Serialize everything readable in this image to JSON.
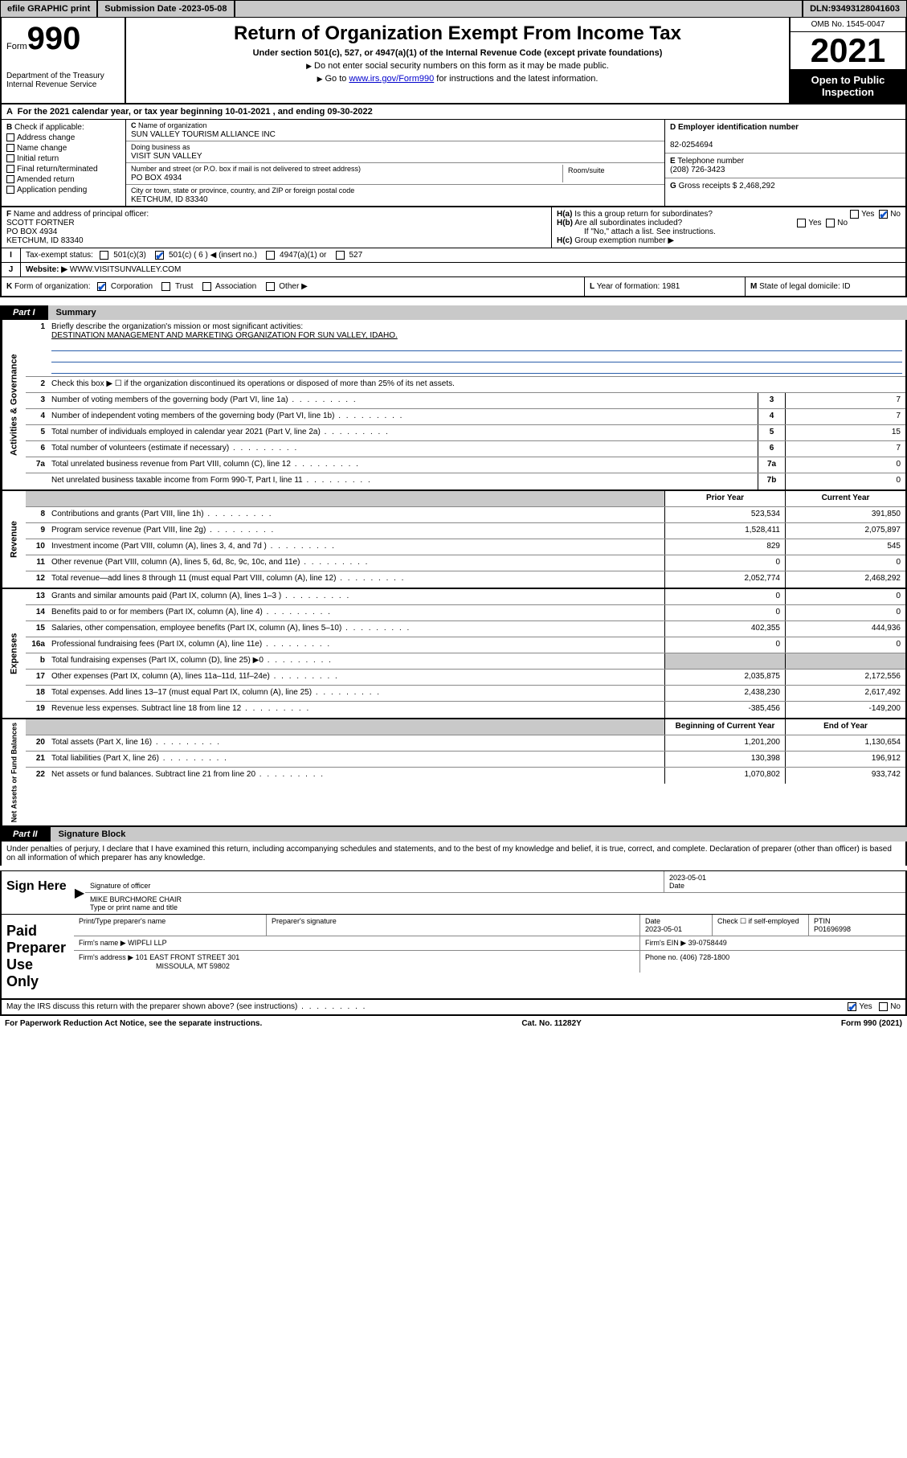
{
  "topbar": {
    "efile": "efile GRAPHIC print",
    "sub_label": "Submission Date - ",
    "sub_date": "2023-05-08",
    "dln_label": "DLN: ",
    "dln": "93493128041603"
  },
  "header": {
    "form_word": "Form",
    "form_num": "990",
    "dept": "Department of the Treasury\nInternal Revenue Service",
    "title": "Return of Organization Exempt From Income Tax",
    "subtitle": "Under section 501(c), 527, or 4947(a)(1) of the Internal Revenue Code (except private foundations)",
    "note1": "Do not enter social security numbers on this form as it may be made public.",
    "note2_pre": "Go to ",
    "note2_link": "www.irs.gov/Form990",
    "note2_post": " for instructions and the latest information.",
    "omb": "OMB No. 1545-0047",
    "year": "2021",
    "open": "Open to Public Inspection"
  },
  "lineA": "For the 2021 calendar year, or tax year beginning 10-01-2021   , and ending 09-30-2022",
  "B": {
    "label": "Check if applicable:",
    "items": [
      "Address change",
      "Name change",
      "Initial return",
      "Final return/terminated",
      "Amended return",
      "Application pending"
    ]
  },
  "C": {
    "name_lbl": "Name of organization",
    "name": "SUN VALLEY TOURISM ALLIANCE INC",
    "dba_lbl": "Doing business as",
    "dba": "VISIT SUN VALLEY",
    "street_lbl": "Number and street (or P.O. box if mail is not delivered to street address)",
    "room_lbl": "Room/suite",
    "street": "PO BOX 4934",
    "city_lbl": "City or town, state or province, country, and ZIP or foreign postal code",
    "city": "KETCHUM, ID  83340"
  },
  "D": {
    "lbl": "Employer identification number",
    "val": "82-0254694"
  },
  "E": {
    "lbl": "Telephone number",
    "val": "(208) 726-3423"
  },
  "G": {
    "lbl": "Gross receipts $",
    "val": "2,468,292"
  },
  "F": {
    "lbl": "Name and address of principal officer:",
    "name": "SCOTT FORTNER",
    "addr1": "PO BOX 4934",
    "addr2": "KETCHUM, ID  83340"
  },
  "H": {
    "a": "Is this a group return for subordinates?",
    "b": "Are all subordinates included?",
    "b_note": "If \"No,\" attach a list. See instructions.",
    "c": "Group exemption number ▶",
    "yes": "Yes",
    "no": "No"
  },
  "I": {
    "lbl": "Tax-exempt status:",
    "opts": [
      "501(c)(3)",
      "501(c) ( 6 ) ◀ (insert no.)",
      "4947(a)(1) or",
      "527"
    ],
    "checked_index": 1
  },
  "J": {
    "lbl": "Website: ▶",
    "val": "WWW.VISITSUNVALLEY.COM"
  },
  "K": {
    "lbl": "Form of organization:",
    "opts": [
      "Corporation",
      "Trust",
      "Association",
      "Other ▶"
    ],
    "checked_index": 0
  },
  "L": {
    "lbl": "Year of formation:",
    "val": "1981"
  },
  "M": {
    "lbl": "State of legal domicile:",
    "val": "ID"
  },
  "part1": {
    "tag": "Part I",
    "title": "Summary"
  },
  "summary": {
    "mission_lbl": "Briefly describe the organization's mission or most significant activities:",
    "mission": "DESTINATION MANAGEMENT AND MARKETING ORGANIZATION FOR SUN VALLEY, IDAHO.",
    "line2": "Check this box ▶ ☐  if the organization discontinued its operations or disposed of more than 25% of its net assets.",
    "gov_rows": [
      {
        "n": "3",
        "t": "Number of voting members of the governing body (Part VI, line 1a)",
        "box": "3",
        "v": "7"
      },
      {
        "n": "4",
        "t": "Number of independent voting members of the governing body (Part VI, line 1b)",
        "box": "4",
        "v": "7"
      },
      {
        "n": "5",
        "t": "Total number of individuals employed in calendar year 2021 (Part V, line 2a)",
        "box": "5",
        "v": "15"
      },
      {
        "n": "6",
        "t": "Total number of volunteers (estimate if necessary)",
        "box": "6",
        "v": "7"
      },
      {
        "n": "7a",
        "t": "Total unrelated business revenue from Part VIII, column (C), line 12",
        "box": "7a",
        "v": "0"
      },
      {
        "n": "",
        "t": "Net unrelated business taxable income from Form 990-T, Part I, line 11",
        "box": "7b",
        "v": "0"
      }
    ],
    "col_prior": "Prior Year",
    "col_curr": "Current Year",
    "rev_rows": [
      {
        "n": "8",
        "t": "Contributions and grants (Part VIII, line 1h)",
        "p": "523,534",
        "c": "391,850"
      },
      {
        "n": "9",
        "t": "Program service revenue (Part VIII, line 2g)",
        "p": "1,528,411",
        "c": "2,075,897"
      },
      {
        "n": "10",
        "t": "Investment income (Part VIII, column (A), lines 3, 4, and 7d )",
        "p": "829",
        "c": "545"
      },
      {
        "n": "11",
        "t": "Other revenue (Part VIII, column (A), lines 5, 6d, 8c, 9c, 10c, and 11e)",
        "p": "0",
        "c": "0"
      },
      {
        "n": "12",
        "t": "Total revenue—add lines 8 through 11 (must equal Part VIII, column (A), line 12)",
        "p": "2,052,774",
        "c": "2,468,292"
      }
    ],
    "exp_rows": [
      {
        "n": "13",
        "t": "Grants and similar amounts paid (Part IX, column (A), lines 1–3 )",
        "p": "0",
        "c": "0"
      },
      {
        "n": "14",
        "t": "Benefits paid to or for members (Part IX, column (A), line 4)",
        "p": "0",
        "c": "0"
      },
      {
        "n": "15",
        "t": "Salaries, other compensation, employee benefits (Part IX, column (A), lines 5–10)",
        "p": "402,355",
        "c": "444,936"
      },
      {
        "n": "16a",
        "t": "Professional fundraising fees (Part IX, column (A), line 11e)",
        "p": "0",
        "c": "0"
      },
      {
        "n": "b",
        "t": "Total fundraising expenses (Part IX, column (D), line 25) ▶0",
        "p": "",
        "c": "",
        "grey": true
      },
      {
        "n": "17",
        "t": "Other expenses (Part IX, column (A), lines 11a–11d, 11f–24e)",
        "p": "2,035,875",
        "c": "2,172,556"
      },
      {
        "n": "18",
        "t": "Total expenses. Add lines 13–17 (must equal Part IX, column (A), line 25)",
        "p": "2,438,230",
        "c": "2,617,492"
      },
      {
        "n": "19",
        "t": "Revenue less expenses. Subtract line 18 from line 12",
        "p": "-385,456",
        "c": "-149,200"
      }
    ],
    "col_begin": "Beginning of Current Year",
    "col_end": "End of Year",
    "na_rows": [
      {
        "n": "20",
        "t": "Total assets (Part X, line 16)",
        "p": "1,201,200",
        "c": "1,130,654"
      },
      {
        "n": "21",
        "t": "Total liabilities (Part X, line 26)",
        "p": "130,398",
        "c": "196,912"
      },
      {
        "n": "22",
        "t": "Net assets or fund balances. Subtract line 21 from line 20",
        "p": "1,070,802",
        "c": "933,742"
      }
    ],
    "vtabs": [
      "Activities & Governance",
      "Revenue",
      "Expenses",
      "Net Assets or Fund Balances"
    ]
  },
  "part2": {
    "tag": "Part II",
    "title": "Signature Block"
  },
  "sig": {
    "perjury": "Under penalties of perjury, I declare that I have examined this return, including accompanying schedules and statements, and to the best of my knowledge and belief, it is true, correct, and complete. Declaration of preparer (other than officer) is based on all information of which preparer has any knowledge.",
    "sign_here": "Sign Here",
    "sig_officer": "Signature of officer",
    "sig_date": "2023-05-01",
    "date_lbl": "Date",
    "officer_name": "MIKE BURCHMORE CHAIR",
    "type_name_lbl": "Type or print name and title",
    "paid": "Paid Preparer Use Only",
    "prep_name_lbl": "Print/Type preparer's name",
    "prep_sig_lbl": "Preparer's signature",
    "prep_date": "2023-05-01",
    "self_emp": "Check ☐ if self-employed",
    "ptin_lbl": "PTIN",
    "ptin": "P01696998",
    "firm_name_lbl": "Firm's name    ▶",
    "firm_name": "WIPFLI LLP",
    "firm_ein_lbl": "Firm's EIN ▶",
    "firm_ein": "39-0758449",
    "firm_addr_lbl": "Firm's address ▶",
    "firm_addr1": "101 EAST FRONT STREET 301",
    "firm_addr2": "MISSOULA, MT  59802",
    "phone_lbl": "Phone no.",
    "phone": "(406) 728-1800",
    "discuss": "May the IRS discuss this return with the preparer shown above? (see instructions)"
  },
  "footer": {
    "pra": "For Paperwork Reduction Act Notice, see the separate instructions.",
    "cat": "Cat. No. 11282Y",
    "form": "Form 990 (2021)"
  }
}
